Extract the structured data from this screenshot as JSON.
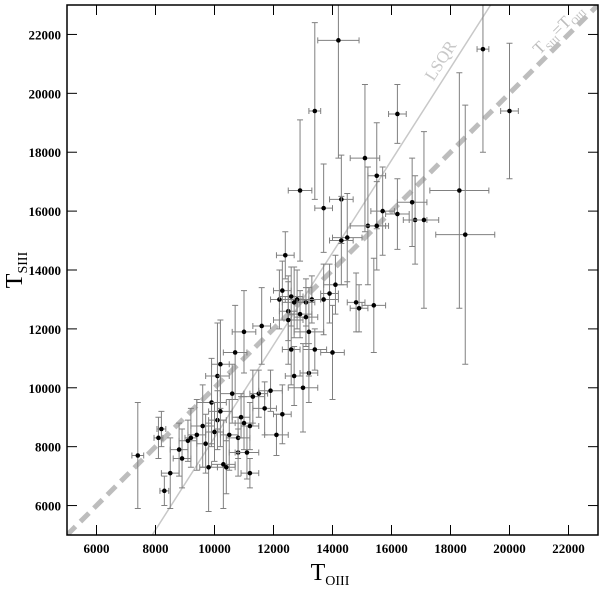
{
  "chart_data": {
    "type": "scatter",
    "xlabel": {
      "text": "T",
      "sub": "OIII"
    },
    "ylabel": {
      "text": "T",
      "sub": "SIII"
    },
    "xlim": [
      5000,
      23000
    ],
    "ylim": [
      5000,
      23000
    ],
    "xticks": [
      6000,
      8000,
      10000,
      12000,
      14000,
      16000,
      18000,
      20000,
      22000
    ],
    "yticks": [
      6000,
      8000,
      10000,
      12000,
      14000,
      16000,
      18000,
      20000,
      22000
    ],
    "series": [
      {
        "color": "#000000",
        "errcolor": "#808080",
        "x": [
          7400,
          8100,
          8200,
          8300,
          8500,
          8800,
          8900,
          9100,
          9200,
          9400,
          9600,
          9700,
          9800,
          9900,
          10000,
          10100,
          10100,
          10200,
          10200,
          10300,
          10400,
          10500,
          10600,
          10700,
          10800,
          10800,
          10900,
          11000,
          11000,
          11100,
          11200,
          11200,
          11300,
          11500,
          11600,
          11700,
          11900,
          12100,
          12200,
          12300,
          12300,
          12400,
          12500,
          12500,
          12600,
          12600,
          12700,
          12700,
          12800,
          12900,
          12900,
          13000,
          13100,
          13100,
          13200,
          13200,
          13300,
          13400,
          13400,
          13700,
          13700,
          13900,
          14000,
          14100,
          14200,
          14300,
          14300,
          14500,
          14800,
          14900,
          15100,
          15200,
          15400,
          15500,
          15500,
          15700,
          16200,
          16200,
          16700,
          16800,
          17100,
          18300,
          18500,
          19100,
          20000
        ],
        "values": [
          7700,
          8300,
          8600,
          6500,
          7100,
          7900,
          7600,
          8200,
          8300,
          8400,
          8700,
          8100,
          7300,
          9500,
          8500,
          8900,
          10400,
          10800,
          9200,
          7400,
          7300,
          8400,
          9800,
          11200,
          7800,
          8300,
          9000,
          11900,
          8800,
          7800,
          8700,
          7100,
          9700,
          9800,
          12100,
          9300,
          9900,
          8400,
          13000,
          9100,
          13300,
          14500,
          12600,
          12300,
          13100,
          11300,
          12900,
          10400,
          13000,
          12500,
          16700,
          10000,
          12900,
          12400,
          10500,
          11900,
          13000,
          19400,
          11300,
          13000,
          16100,
          13200,
          11200,
          13500,
          21800,
          16400,
          15000,
          15100,
          12900,
          12700,
          17800,
          15500,
          12800,
          17200,
          15500,
          16000,
          19300,
          15900,
          16300,
          15700,
          15700,
          16700,
          15200,
          21500,
          19400
        ],
        "xerr": [
          200,
          150,
          150,
          150,
          300,
          300,
          300,
          300,
          200,
          300,
          400,
          300,
          300,
          500,
          300,
          300,
          400,
          300,
          400,
          400,
          300,
          300,
          400,
          400,
          300,
          400,
          300,
          400,
          300,
          400,
          300,
          300,
          400,
          300,
          300,
          400,
          400,
          400,
          300,
          300,
          300,
          300,
          300,
          500,
          400,
          300,
          400,
          300,
          400,
          400,
          400,
          500,
          300,
          400,
          300,
          500,
          300,
          200,
          400,
          500,
          300,
          300,
          400,
          400,
          700,
          400,
          400,
          500,
          300,
          300,
          500,
          600,
          400,
          300,
          400,
          400,
          300,
          400,
          500,
          400,
          500,
          1000,
          1000,
          200,
          300
        ],
        "yerr": [
          1800,
          700,
          600,
          500,
          1200,
          900,
          1000,
          700,
          1000,
          1200,
          1400,
          1000,
          1500,
          1500,
          1000,
          1000,
          1800,
          1500,
          1200,
          1500,
          900,
          1200,
          1000,
          1600,
          800,
          700,
          700,
          1400,
          900,
          900,
          800,
          500,
          900,
          800,
          1300,
          900,
          700,
          700,
          1000,
          1000,
          1000,
          800,
          1000,
          1500,
          1000,
          1200,
          1200,
          1000,
          1000,
          800,
          2400,
          1500,
          800,
          1000,
          1000,
          1500,
          800,
          3000,
          700,
          1200,
          1500,
          1000,
          1600,
          1000,
          4000,
          1500,
          1500,
          1500,
          1000,
          800,
          2500,
          2000,
          1600,
          1800,
          1500,
          1500,
          1000,
          1200,
          1500,
          1500,
          3000,
          4000,
          4400,
          3500,
          2300
        ]
      }
    ],
    "lines": [
      {
        "label": [
          {
            "text": "LSQR"
          }
        ],
        "x": [
          7890,
          19360
        ],
        "values": [
          5000,
          23000
        ],
        "color": "#c8c8c8",
        "width": 1.5,
        "dash": false
      },
      {
        "label": [
          {
            "text": "T"
          },
          {
            "text": "SIII",
            "sub": true
          },
          {
            "text": "=T"
          },
          {
            "text": "OIII",
            "sub": true
          }
        ],
        "x": [
          5000,
          23000
        ],
        "values": [
          5000,
          23000
        ],
        "color": "#bdbdbd",
        "width": 5,
        "dash": true
      }
    ]
  }
}
